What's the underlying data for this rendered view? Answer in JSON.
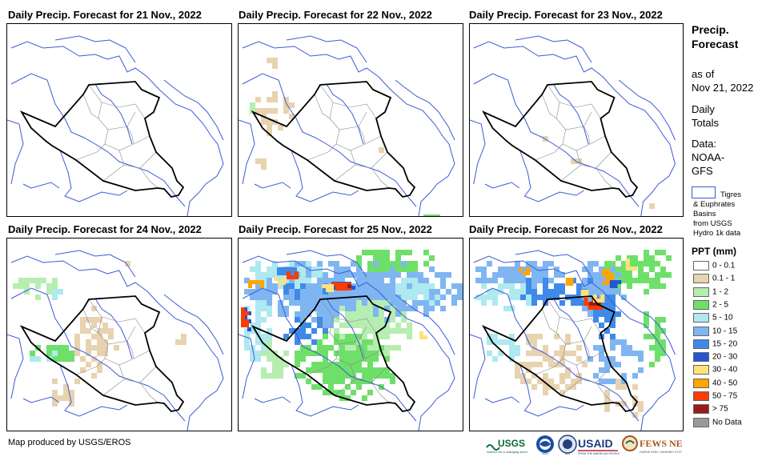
{
  "panels": [
    {
      "title": "Daily Precip. Forecast for 21 Nov., 2022"
    },
    {
      "title": "Daily Precip. Forecast for 22 Nov., 2022"
    },
    {
      "title": "Daily Precip. Forecast for 23 Nov., 2022"
    },
    {
      "title": "Daily Precip. Forecast for 24 Nov., 2022"
    },
    {
      "title": "Daily Precip. Forecast for 25 Nov., 2022"
    },
    {
      "title": "Daily Precip. Forecast for 26 Nov., 2022"
    }
  ],
  "legend": {
    "title_line1": "Precip.",
    "title_line2": "Forecast",
    "asof_line1": "as of",
    "asof_line2": "Nov 21, 2022",
    "daily_line1": "Daily",
    "daily_line2": "Totals",
    "data_line1": "Data:",
    "data_line2": "NOAA-",
    "data_line3": "GFS",
    "basin_line1": "Tigres",
    "basin_line2": "& Euphrates",
    "basin_line3": "Basins",
    "basin_line4": "from USGS",
    "basin_line5": "Hydro 1k data",
    "ppt_title": "PPT (mm)",
    "classes": [
      {
        "label": "0 - 0.1",
        "color": "#ffffff"
      },
      {
        "label": "0.1 - 1",
        "color": "#e8d3b0"
      },
      {
        "label": "1 - 2",
        "color": "#b5eeb0"
      },
      {
        "label": "2 - 5",
        "color": "#6ee06a"
      },
      {
        "label": "5 - 10",
        "color": "#aee9f0"
      },
      {
        "label": "10 - 15",
        "color": "#7fb6f2"
      },
      {
        "label": "15 - 20",
        "color": "#3f8ae8"
      },
      {
        "label": "20 - 30",
        "color": "#2356d6"
      },
      {
        "label": "30 - 40",
        "color": "#ffe27a"
      },
      {
        "label": "40 - 50",
        "color": "#ffa500"
      },
      {
        "label": "50 - 75",
        "color": "#ff3b00"
      },
      {
        "label": "> 75",
        "color": "#9b1b1b"
      },
      {
        "label": "No Data",
        "color": "#9a9a9a"
      }
    ]
  },
  "footer": {
    "credit": "Map produced by USGS/EROS",
    "logos": [
      "USGS",
      "NOAA",
      "DOS",
      "USAID",
      "FEWS NET"
    ]
  }
}
